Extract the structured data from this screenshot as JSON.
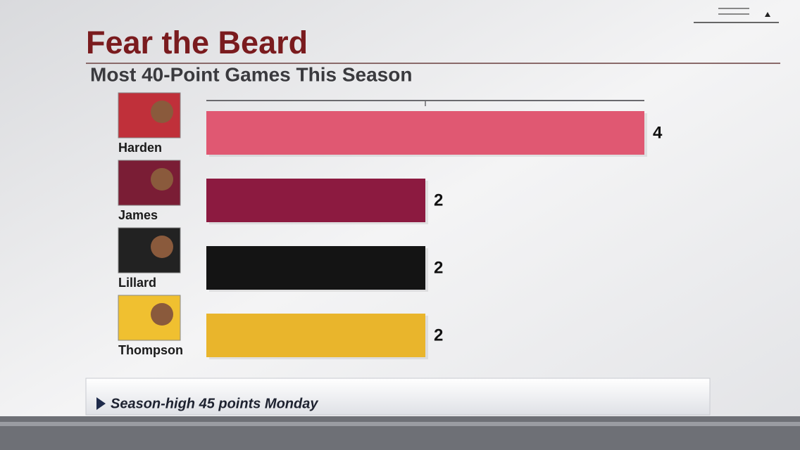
{
  "chart_data": {
    "type": "bar",
    "orientation": "horizontal",
    "title": "Fear the Beard",
    "subtitle": "Most 40-Point Games This Season",
    "categories": [
      "Harden",
      "James",
      "Lillard",
      "Thompson"
    ],
    "values": [
      4,
      2,
      2,
      2
    ],
    "colors": [
      "#e05872",
      "#8c1a40",
      "#141414",
      "#e9b52c"
    ],
    "xlim": [
      0,
      4
    ],
    "footnote": "Season-high 45 points Monday"
  }
}
